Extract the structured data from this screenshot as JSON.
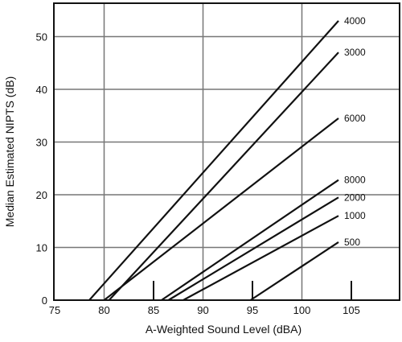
{
  "chart_data": {
    "type": "line",
    "title": "",
    "xlabel": "A-Weighted Sound Level (dBA)",
    "ylabel": "Median Estimated NIPTS (dB)",
    "xlim": [
      75,
      105
    ],
    "ylim": [
      0,
      55
    ],
    "x_ticks": [
      75,
      80,
      85,
      90,
      95,
      100,
      105
    ],
    "y_ticks": [
      0,
      10,
      20,
      30,
      40,
      50
    ],
    "x_gridlines": [
      80,
      90,
      100
    ],
    "y_gridlines": [
      10,
      20,
      30,
      40,
      50
    ],
    "minor_x_marks": [
      85,
      95,
      105
    ],
    "grid": true,
    "series": [
      {
        "name": "4000",
        "points": [
          [
            78.5,
            0
          ],
          [
            103.7,
            53
          ]
        ]
      },
      {
        "name": "3000",
        "points": [
          [
            80.5,
            0
          ],
          [
            103.7,
            47
          ]
        ]
      },
      {
        "name": "6000",
        "points": [
          [
            80.0,
            0
          ],
          [
            103.7,
            34.5
          ]
        ]
      },
      {
        "name": "8000",
        "points": [
          [
            85.8,
            0
          ],
          [
            103.7,
            22.8
          ]
        ]
      },
      {
        "name": "2000",
        "points": [
          [
            86.5,
            0
          ],
          [
            103.7,
            19.5
          ]
        ]
      },
      {
        "name": "1000",
        "points": [
          [
            88.0,
            0
          ],
          [
            103.7,
            16.0
          ]
        ]
      },
      {
        "name": "500",
        "points": [
          [
            94.8,
            0
          ],
          [
            103.7,
            11.0
          ]
        ]
      }
    ]
  }
}
